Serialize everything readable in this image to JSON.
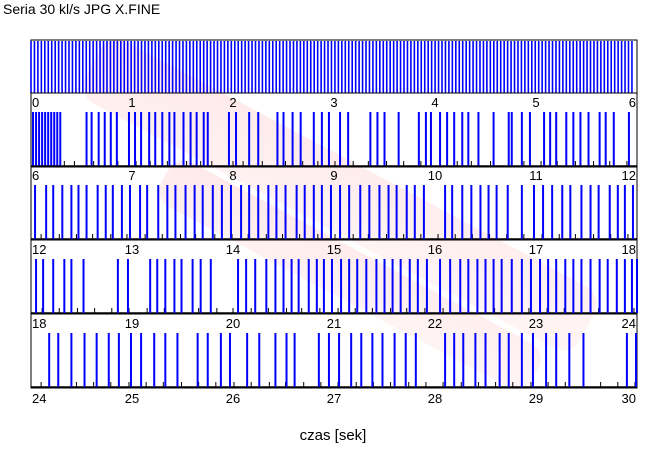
{
  "chart_data": {
    "type": "bar",
    "title": "Seria 30 kl/s JPG X.FINE",
    "xlabel": "czas [sek]",
    "ylabel": "",
    "series_color": "#0000ff",
    "marker_color": "#000000",
    "top_strip": {
      "x_range": [
        0,
        6
      ],
      "frames": 175,
      "start": 0.0,
      "end": 5.95
    },
    "rows": [
      {
        "x_range": [
          0,
          6
        ],
        "ticks": [
          0,
          1,
          2,
          3,
          4,
          5,
          6
        ],
        "frames": [
          0.02,
          0.05,
          0.08,
          0.11,
          0.14,
          0.17,
          0.2,
          0.23,
          0.26,
          0.29,
          0.55,
          0.6,
          0.67,
          0.73,
          0.79,
          0.85,
          0.97,
          1.03,
          1.09,
          1.17,
          1.23,
          1.3,
          1.37,
          1.42,
          1.51,
          1.58,
          1.64,
          1.71,
          1.75,
          1.96,
          2.03,
          2.16,
          2.25,
          2.44,
          2.5,
          2.59,
          2.67,
          2.8,
          2.88,
          2.95,
          3.06,
          3.14,
          3.36,
          3.43,
          3.5,
          3.64,
          3.84,
          3.91,
          3.96,
          4.05,
          4.12,
          4.19,
          4.27,
          4.33,
          4.43,
          4.58,
          4.73,
          4.76,
          4.86,
          4.94,
          5.08,
          5.14,
          5.2,
          5.3,
          5.37,
          5.44,
          5.52,
          5.63,
          5.69,
          5.77,
          5.92
        ],
        "markers": [
          0.33,
          0.43,
          0.62,
          0.86,
          1.04,
          1.18,
          1.35,
          1.54,
          1.68,
          1.79,
          2.0,
          2.1,
          2.29,
          2.52,
          2.69,
          2.84,
          3.01,
          3.19,
          3.34,
          3.52,
          3.69,
          3.86,
          4.05,
          4.22,
          4.36,
          4.55,
          4.73,
          4.88,
          5.05,
          5.21,
          5.39,
          5.57,
          5.73,
          5.9
        ]
      },
      {
        "x_range": [
          6,
          12
        ],
        "ticks": [
          6,
          7,
          8,
          9,
          10,
          11,
          12
        ],
        "frames": [
          6.04,
          6.15,
          6.22,
          6.31,
          6.4,
          6.47,
          6.55,
          6.66,
          6.74,
          6.81,
          6.9,
          6.98,
          7.08,
          7.15,
          7.26,
          7.35,
          7.43,
          7.53,
          7.62,
          7.7,
          7.8,
          7.89,
          7.98,
          8.08,
          8.16,
          8.25,
          8.35,
          8.43,
          8.52,
          8.63,
          8.71,
          8.8,
          8.88,
          8.97,
          9.06,
          9.15,
          9.26,
          9.35,
          9.45,
          9.54,
          9.62,
          9.72,
          9.8,
          9.89,
          10.1,
          10.17,
          10.27,
          10.36,
          10.45,
          10.53,
          10.61,
          10.72,
          10.86,
          10.98,
          11.07,
          11.16,
          11.26,
          11.34,
          11.45,
          11.54,
          11.62,
          11.73,
          11.81,
          11.88,
          11.96,
          12.05
        ],
        "markers": [
          6.1,
          6.28,
          6.45,
          6.61,
          6.79,
          6.95,
          7.13,
          7.3,
          7.48,
          7.63,
          7.82,
          7.99,
          8.15,
          8.33,
          8.49,
          8.66,
          8.84,
          9.01,
          9.19,
          9.34,
          9.52,
          9.69,
          9.86,
          10.03,
          10.2,
          10.37,
          10.54,
          10.71,
          10.88,
          11.06,
          11.23,
          11.39,
          11.57,
          11.74,
          11.91
        ]
      },
      {
        "x_range": [
          12,
          18
        ],
        "ticks": [
          12,
          13,
          14,
          15,
          16,
          17,
          18
        ],
        "frames": [
          12.05,
          12.12,
          12.22,
          12.33,
          12.4,
          12.52,
          12.86,
          12.96,
          13.18,
          13.25,
          13.33,
          13.42,
          13.49,
          13.6,
          13.68,
          13.78,
          14.05,
          14.13,
          14.22,
          14.33,
          14.42,
          14.5,
          14.58,
          14.65,
          14.75,
          14.83,
          14.9,
          14.98,
          15.07,
          15.15,
          15.23,
          15.32,
          15.42,
          15.5,
          15.58,
          15.66,
          15.75,
          15.83,
          15.92,
          16.05,
          16.15,
          16.25,
          16.33,
          16.42,
          16.5,
          16.58,
          16.66,
          16.76,
          16.86,
          16.95,
          17.04,
          17.12,
          17.2,
          17.29,
          17.37,
          17.45,
          17.54,
          17.63,
          17.71,
          17.8,
          17.88,
          17.95,
          18.0
        ],
        "markers": [
          12.11,
          12.28,
          12.46,
          12.63,
          12.8,
          12.97,
          13.15,
          13.32,
          13.49,
          13.66,
          13.84,
          14.0,
          14.18,
          14.35,
          14.53,
          14.68,
          14.86,
          15.04,
          15.21,
          15.38,
          15.56,
          15.72,
          15.9,
          16.08,
          16.25,
          16.42,
          16.59,
          16.76,
          16.93,
          17.11,
          17.28,
          17.45,
          17.62,
          17.8,
          17.97
        ]
      },
      {
        "x_range": [
          18,
          24
        ],
        "ticks": [
          18,
          19,
          20,
          21,
          22,
          23,
          24
        ],
        "frames": [
          18.18,
          18.27,
          18.4,
          18.53,
          18.65,
          18.77,
          18.87,
          18.99,
          19.09,
          19.22,
          19.33,
          19.45,
          19.65,
          19.75,
          19.88,
          19.97,
          20.14,
          20.26,
          20.42,
          20.53,
          20.61,
          20.85,
          20.95,
          21.05,
          21.17,
          21.27,
          21.38,
          21.48,
          21.6,
          21.71,
          21.81,
          22.1,
          22.19,
          22.28,
          22.4,
          22.5,
          22.64,
          22.73,
          22.86,
          22.97,
          23.1,
          23.2,
          23.33,
          23.47,
          23.9,
          23.99,
          24.06
        ],
        "markers": [
          18.1,
          18.27,
          18.45,
          18.62,
          18.79,
          18.97,
          19.14,
          19.31,
          19.49,
          19.66,
          19.83,
          20.01,
          20.18,
          20.36,
          20.52,
          20.7,
          20.87,
          21.04,
          21.22,
          21.39,
          21.56,
          21.74,
          21.91,
          22.08,
          22.26,
          22.43,
          22.6,
          22.77,
          22.95,
          23.12,
          23.29,
          23.47,
          23.64,
          23.81,
          23.98
        ]
      }
    ],
    "bottom_ticks": [
      24,
      25,
      26,
      27,
      28,
      29,
      30
    ]
  }
}
